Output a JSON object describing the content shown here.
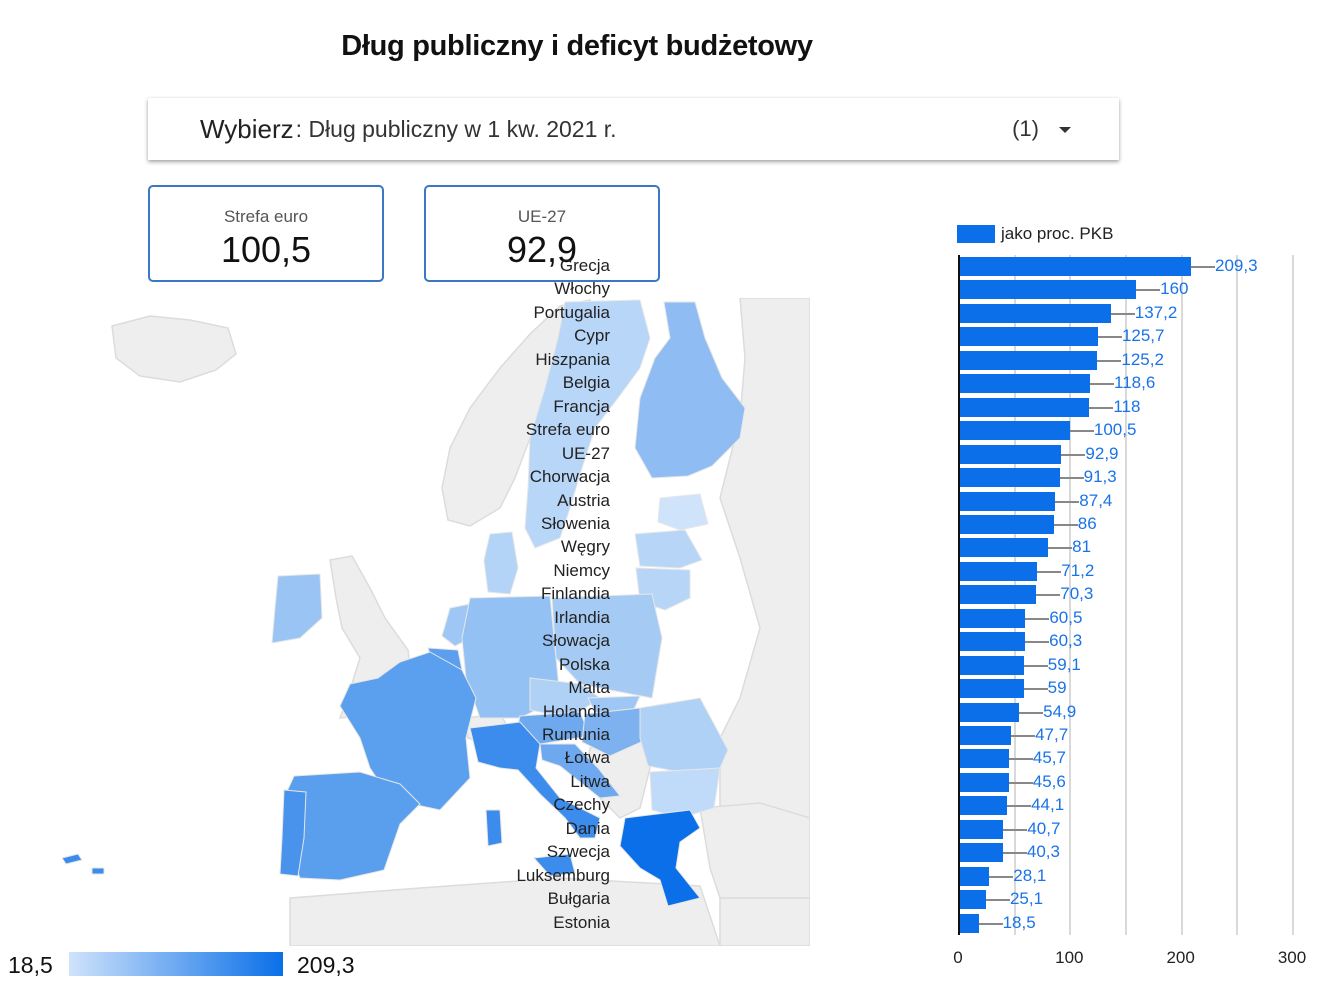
{
  "title": "Dług publiczny i deficyt budżetowy",
  "selector": {
    "label": "Wybierz",
    "value": ": Dług publiczny w 1 kw. 2021 r.",
    "count": "(1)",
    "icon": "dropdown-caret-icon"
  },
  "kpis": [
    {
      "label": "Strefa euro",
      "value": "100,5"
    },
    {
      "label": "UE-27",
      "value": "92,9"
    }
  ],
  "map": {
    "scale_min": "18,5",
    "scale_max": "209,3",
    "color_low": "#cfe3fb",
    "color_high": "#0a6fe8",
    "no_data_color": "#eeeeee"
  },
  "chart_data": {
    "type": "bar",
    "orientation": "horizontal",
    "title": "",
    "legend": [
      "jako proc. PKB"
    ],
    "legend_position": "top",
    "xlabel": "",
    "ylabel": "",
    "xlim": [
      0,
      300
    ],
    "x_ticks": [
      "0",
      "100",
      "200",
      "300"
    ],
    "grid": true,
    "bar_color": "#0a6fe8",
    "label_color": "#1a73e8",
    "categories": [
      "Grecja",
      "Włochy",
      "Portugalia",
      "Cypr",
      "Hiszpania",
      "Belgia",
      "Francja",
      "Strefa euro",
      "UE-27",
      "Chorwacja",
      "Austria",
      "Słowenia",
      "Węgry",
      "Niemcy",
      "Finlandia",
      "Irlandia",
      "Słowacja",
      "Polska",
      "Malta",
      "Holandia",
      "Rumunia",
      "Łotwa",
      "Litwa",
      "Czechy",
      "Dania",
      "Szwecja",
      "Luksemburg",
      "Bułgaria",
      "Estonia"
    ],
    "values": [
      209.3,
      160,
      137.2,
      125.7,
      125.2,
      118.6,
      118,
      100.5,
      92.9,
      91.3,
      87.4,
      86,
      81,
      71.2,
      70.3,
      60.5,
      60.3,
      59.1,
      59,
      54.9,
      47.7,
      45.7,
      45.6,
      44.1,
      40.7,
      40.3,
      28.1,
      25.1,
      18.5
    ],
    "value_labels": [
      "209,3",
      "160",
      "137,2",
      "125,7",
      "125,2",
      "118,6",
      "118",
      "100,5",
      "92,9",
      "91,3",
      "87,4",
      "86",
      "81",
      "71,2",
      "70,3",
      "60,5",
      "60,3",
      "59,1",
      "59",
      "54,9",
      "47,7",
      "45,7",
      "45,6",
      "44,1",
      "40,7",
      "40,3",
      "28,1",
      "25,1",
      "18,5"
    ]
  }
}
